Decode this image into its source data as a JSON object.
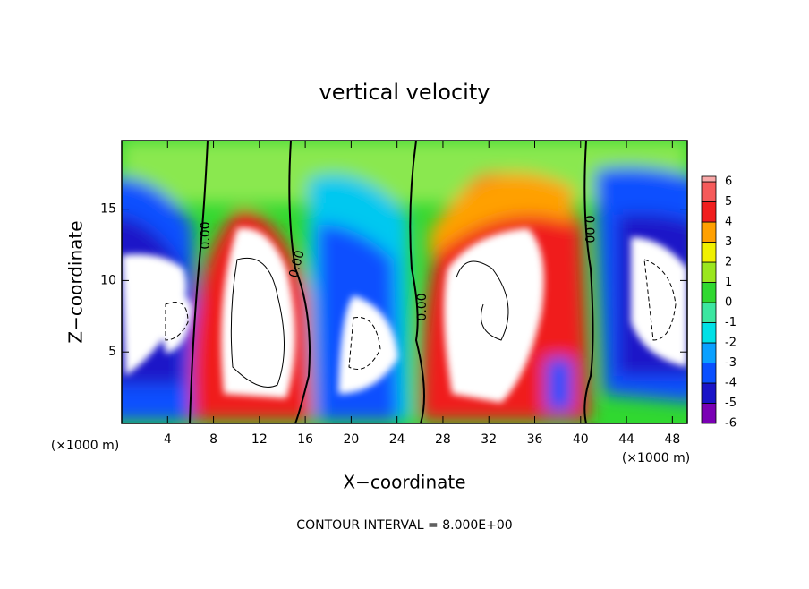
{
  "chart_data": {
    "type": "contour",
    "title": "vertical velocity",
    "xlabel": "X−coordinate",
    "ylabel": "Z−coordinate",
    "x_unit": "(×1000 m)",
    "footer": "CONTOUR INTERVAL = 8.000E+00",
    "zero_contour_label": "0.00",
    "xlim": [
      0,
      49.3
    ],
    "xticks": [
      4,
      8,
      12,
      16,
      20,
      24,
      28,
      32,
      36,
      40,
      44,
      48
    ],
    "ylim": [
      0,
      19.8
    ],
    "yticks": [
      5,
      10,
      15
    ],
    "colorbar": {
      "levels": [
        -6,
        -5,
        -4,
        -3,
        -2,
        -1,
        0,
        1,
        2,
        3,
        4,
        5,
        6
      ],
      "colors": [
        "#7a00b4",
        "#1a14c8",
        "#0a50ff",
        "#0aa0ff",
        "#00e0e6",
        "#3ce6a0",
        "#30d830",
        "#9ae61e",
        "#f0f000",
        "#ffa000",
        "#f01e1e",
        "#f55a5a",
        "#f9a8a8"
      ]
    }
  }
}
